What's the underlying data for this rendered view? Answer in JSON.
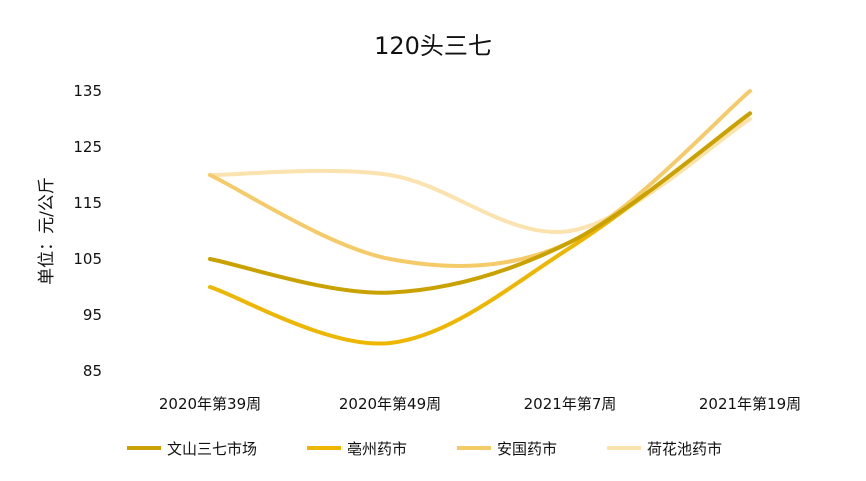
{
  "chart_data": {
    "type": "line",
    "title": "120头三七",
    "ylabel": "单位：元/公斤",
    "xlabel": "",
    "categories": [
      "2020年第39周",
      "2020年第49周",
      "2021年第7周",
      "2021年第19周"
    ],
    "yticks": [
      85,
      95,
      105,
      115,
      125,
      135
    ],
    "ylim": [
      85,
      135
    ],
    "smooth": true,
    "grid": false,
    "legend_position": "bottom",
    "series": [
      {
        "name": "文山三七市场",
        "values": [
          105,
          99,
          108,
          131
        ],
        "color": "#C9A100"
      },
      {
        "name": "亳州药市",
        "values": [
          100,
          90,
          107,
          131
        ],
        "color": "#EDB600"
      },
      {
        "name": "安国药市",
        "values": [
          120,
          105,
          108,
          135
        ],
        "color": "#F5CB6A"
      },
      {
        "name": "荷花池药市",
        "values": [
          120,
          120,
          110,
          130
        ],
        "color": "#FBE3B0"
      }
    ]
  }
}
